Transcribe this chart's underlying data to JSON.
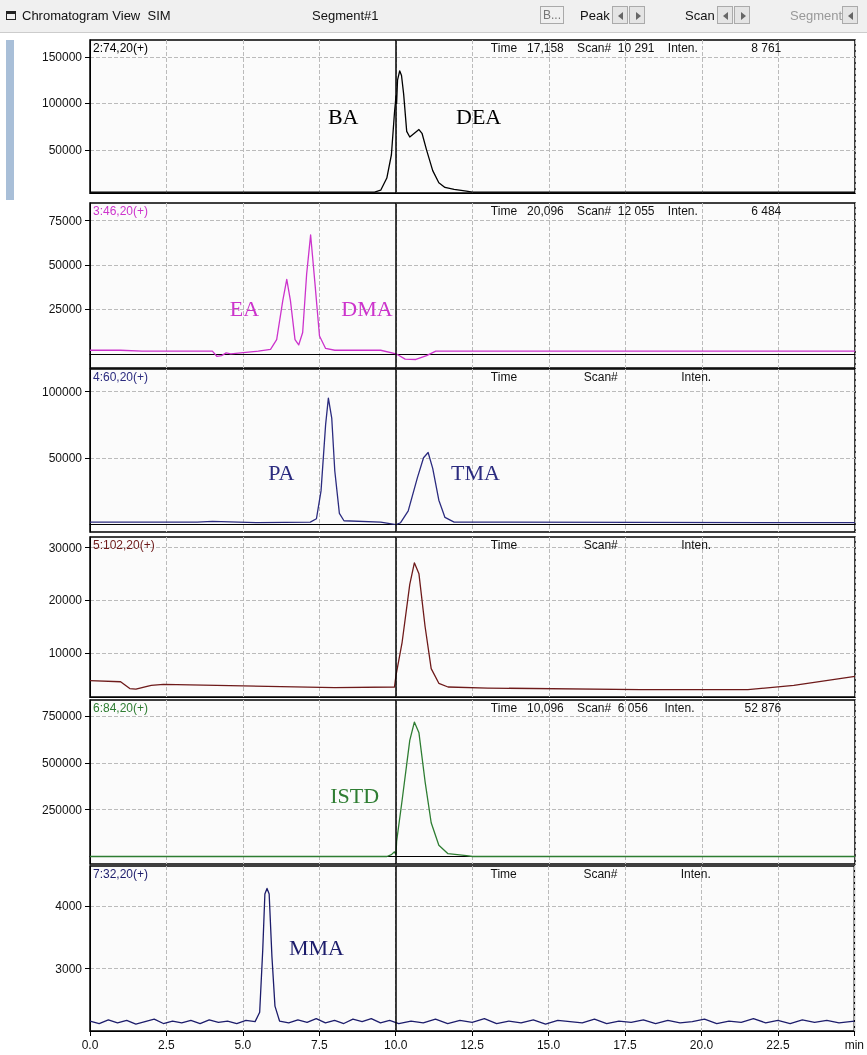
{
  "chart_data": [
    {
      "type": "line",
      "title": "Chromatogram View  SIM",
      "subtitle": "Segment#1",
      "xlim": [
        0,
        25
      ],
      "xticks": [
        0,
        2.5,
        5,
        7.5,
        10,
        12.5,
        15,
        17.5,
        20,
        22.5,
        25
      ],
      "ylim": [
        4000,
        168000
      ],
      "yticks": [
        50000,
        100000,
        150000
      ],
      "grid": true,
      "legend": false,
      "tick_labels": "y",
      "marker": "none",
      "line_style": "solid",
      "ref_lines": [
        {
          "axis": "x",
          "value": 10,
          "color": "#000000"
        }
      ],
      "annotations": [
        "Time   17,158    Scan#  10 291    Inten.                8 761",
        "B...",
        "Peak",
        "Scan",
        "Segment",
        "BA",
        "DEA"
      ],
      "series": [
        {
          "name": "2:74,20(+)",
          "color": "#000000",
          "x": [
            0,
            9.3,
            9.5,
            9.7,
            9.85,
            9.95,
            10.0,
            10.02,
            10.05,
            10.12,
            10.18,
            10.25,
            10.35,
            10.45,
            10.6,
            10.75,
            10.85,
            11.0,
            11.2,
            11.4,
            11.6,
            11.9,
            12.3,
            12.5,
            25
          ],
          "values": [
            5000,
            5000,
            7000,
            20000,
            45000,
            90000,
            108000,
            100000,
            125000,
            135000,
            130000,
            110000,
            70000,
            64000,
            68000,
            72000,
            68000,
            50000,
            28000,
            15000,
            10000,
            8000,
            6000,
            5000,
            5000
          ]
        }
      ]
    },
    {
      "type": "line",
      "xlim": [
        0,
        25
      ],
      "xticks": [
        0,
        2.5,
        5,
        7.5,
        10,
        12.5,
        15,
        17.5,
        20,
        22.5,
        25
      ],
      "ylim": [
        -8000,
        85000
      ],
      "yticks": [
        25000,
        50000,
        75000
      ],
      "grid": true,
      "legend": false,
      "tick_labels": "y",
      "marker": "none",
      "line_style": "solid",
      "ref_lines": [
        {
          "axis": "x",
          "value": 10,
          "color": "#000000"
        }
      ],
      "annotations": [
        "Time   20,096    Scan#  12 055    Inten.                6 484",
        "EA",
        "DMA"
      ],
      "series": [
        {
          "name": "3:46,20(+)",
          "color": "#cc33cc",
          "x": [
            0,
            1.0,
            1.7,
            4.0,
            4.15,
            4.3,
            4.45,
            4.6,
            5.5,
            5.9,
            6.1,
            6.3,
            6.43,
            6.55,
            6.7,
            6.82,
            6.95,
            7.08,
            7.21,
            7.35,
            7.5,
            7.7,
            8.0,
            9.5,
            10.0,
            10.3,
            10.65,
            11.0,
            11.3,
            25
          ],
          "values": [
            2000,
            2000,
            1500,
            1500,
            -1500,
            -1000,
            500,
            0,
            1500,
            2500,
            8000,
            30000,
            42000,
            30000,
            8000,
            5000,
            12000,
            45000,
            67000,
            40000,
            10000,
            3000,
            2000,
            2000,
            0,
            -3000,
            -3200,
            -1000,
            1500,
            1500
          ]
        }
      ]
    },
    {
      "type": "line",
      "xlim": [
        0,
        25
      ],
      "xticks": [
        0,
        2.5,
        5,
        7.5,
        10,
        12.5,
        15,
        17.5,
        20,
        22.5,
        25
      ],
      "ylim": [
        -6000,
        117000
      ],
      "yticks": [
        50000,
        100000
      ],
      "grid": true,
      "legend": false,
      "tick_labels": "y",
      "marker": "none",
      "line_style": "solid",
      "ref_lines": [
        {
          "axis": "x",
          "value": 10,
          "color": "#000000"
        }
      ],
      "annotations": [
        "Time                    Scan#                   Inten.",
        "PA",
        "TMA"
      ],
      "series": [
        {
          "name": "4:60,20(+)",
          "color": "#2b2b7f",
          "x": [
            0,
            3.5,
            4,
            5.5,
            7.2,
            7.4,
            7.55,
            7.7,
            7.79,
            7.9,
            8.0,
            8.15,
            8.3,
            9.5,
            10.0,
            10.15,
            10.4,
            10.7,
            10.9,
            11.05,
            11.2,
            11.4,
            11.6,
            11.9,
            25
          ],
          "values": [
            1500,
            1500,
            2000,
            1000,
            1500,
            4000,
            25000,
            75000,
            95000,
            80000,
            40000,
            8000,
            2500,
            1500,
            -500,
            1000,
            10000,
            35000,
            50000,
            54000,
            42000,
            18000,
            5000,
            1500,
            1000
          ]
        }
      ]
    },
    {
      "type": "line",
      "xlim": [
        0,
        25
      ],
      "xticks": [
        0,
        2.5,
        5,
        7.5,
        10,
        12.5,
        15,
        17.5,
        20,
        22.5,
        25
      ],
      "ylim": [
        1600,
        32000
      ],
      "yticks": [
        10000,
        20000,
        30000
      ],
      "grid": true,
      "legend": false,
      "tick_labels": "y",
      "marker": "none",
      "line_style": "solid",
      "ref_lines": [
        {
          "axis": "x",
          "value": 10,
          "color": "#000000"
        }
      ],
      "annotations": [
        "Time                    Scan#                   Inten."
      ],
      "series": [
        {
          "name": "5:102,20(+)",
          "color": "#6e1a1a",
          "x": [
            0,
            1.0,
            1.3,
            1.5,
            2.0,
            2.4,
            5.0,
            8.0,
            9.95,
            10.0,
            10.2,
            10.45,
            10.6,
            10.75,
            10.95,
            11.15,
            11.4,
            11.7,
            13,
            18,
            21.5,
            23,
            25
          ],
          "values": [
            4700,
            4500,
            3200,
            3100,
            3800,
            4000,
            3700,
            3400,
            3500,
            5700,
            12000,
            23000,
            27100,
            25000,
            15000,
            7000,
            4200,
            3500,
            3300,
            3000,
            3000,
            3800,
            5500
          ]
        }
      ]
    },
    {
      "type": "line",
      "xlim": [
        0,
        25
      ],
      "xticks": [
        0,
        2.5,
        5,
        7.5,
        10,
        12.5,
        15,
        17.5,
        20,
        22.5,
        25
      ],
      "ylim": [
        -40000,
        835000
      ],
      "yticks": [
        250000,
        500000,
        750000
      ],
      "grid": true,
      "legend": false,
      "tick_labels": "y",
      "marker": "none",
      "line_style": "solid",
      "ref_lines": [
        {
          "axis": "x",
          "value": 10,
          "color": "#000000"
        }
      ],
      "annotations": [
        "Time   10,096    Scan#  6 056     Inten.               52 876",
        "ISTD"
      ],
      "series": [
        {
          "name": "6:84,20(+)",
          "color": "#2e7d32",
          "x": [
            0,
            9.7,
            9.85,
            9.95,
            10.0,
            10.02,
            10.2,
            10.45,
            10.6,
            10.75,
            10.95,
            11.15,
            11.4,
            11.7,
            12.3,
            12.5,
            25
          ],
          "values": [
            0,
            0,
            10000,
            25000,
            10000,
            80000,
            300000,
            620000,
            717000,
            660000,
            400000,
            180000,
            60000,
            15000,
            5000,
            0,
            0
          ]
        }
      ]
    },
    {
      "type": "line",
      "xlim": [
        0,
        25
      ],
      "xticks": [
        {
          "value": 0,
          "label": "0.0"
        },
        2.5,
        {
          "value": 5,
          "label": "5.0"
        },
        7.5,
        {
          "value": 10,
          "label": "10.0"
        },
        12.5,
        {
          "value": 15,
          "label": "15.0"
        },
        17.5,
        {
          "value": 20,
          "label": "20.0"
        },
        22.5,
        {
          "value": 25,
          "label": "min"
        }
      ],
      "ylim": [
        2000,
        4650
      ],
      "yticks": [
        3000,
        4000
      ],
      "grid": true,
      "legend": false,
      "marker": "none",
      "line_style": "solid",
      "ref_lines": [
        {
          "axis": "x",
          "value": 10,
          "color": "#000000"
        }
      ],
      "annotations": [
        "Time                    Scan#                   Inten.",
        "MMA"
      ],
      "series": [
        {
          "name": "7:32,20(+)",
          "color": "#1c1c6b",
          "x": [
            0,
            0.3,
            0.6,
            0.9,
            1.2,
            1.5,
            1.8,
            2.1,
            2.4,
            2.7,
            3.0,
            3.3,
            3.6,
            3.9,
            4.2,
            4.5,
            4.8,
            5.1,
            5.4,
            5.55,
            5.65,
            5.72,
            5.79,
            5.86,
            5.95,
            6.05,
            6.2,
            6.5,
            6.8,
            7.1,
            7.4,
            7.7,
            8.0,
            8.3,
            8.6,
            8.9,
            9.2,
            9.5,
            9.8,
            10.1,
            10.5,
            10.9,
            11.3,
            11.7,
            12.1,
            12.5,
            12.9,
            13.3,
            13.7,
            14.1,
            14.5,
            14.9,
            15.3,
            15.7,
            16.1,
            16.5,
            16.9,
            17.3,
            17.7,
            18.1,
            18.5,
            18.9,
            19.3,
            19.7,
            20.1,
            20.5,
            20.9,
            21.3,
            21.7,
            22.1,
            22.5,
            22.9,
            23.3,
            23.7,
            24.1,
            24.5,
            25
          ],
          "values": [
            2160,
            2120,
            2180,
            2130,
            2170,
            2110,
            2150,
            2190,
            2120,
            2160,
            2130,
            2170,
            2120,
            2180,
            2140,
            2160,
            2120,
            2170,
            2150,
            2300,
            3300,
            4200,
            4290,
            4200,
            3200,
            2400,
            2160,
            2130,
            2180,
            2140,
            2200,
            2130,
            2170,
            2120,
            2190,
            2150,
            2200,
            2130,
            2170,
            2120,
            2160,
            2130,
            2190,
            2120,
            2170,
            2140,
            2200,
            2120,
            2160,
            2130,
            2180,
            2110,
            2170,
            2150,
            2130,
            2190,
            2120,
            2160,
            2140,
            2180,
            2120,
            2170,
            2130,
            2150,
            2190,
            2120,
            2160,
            2140,
            2200,
            2130,
            2170,
            2120,
            2180,
            2140,
            2170,
            2130,
            2160
          ]
        }
      ]
    }
  ]
}
